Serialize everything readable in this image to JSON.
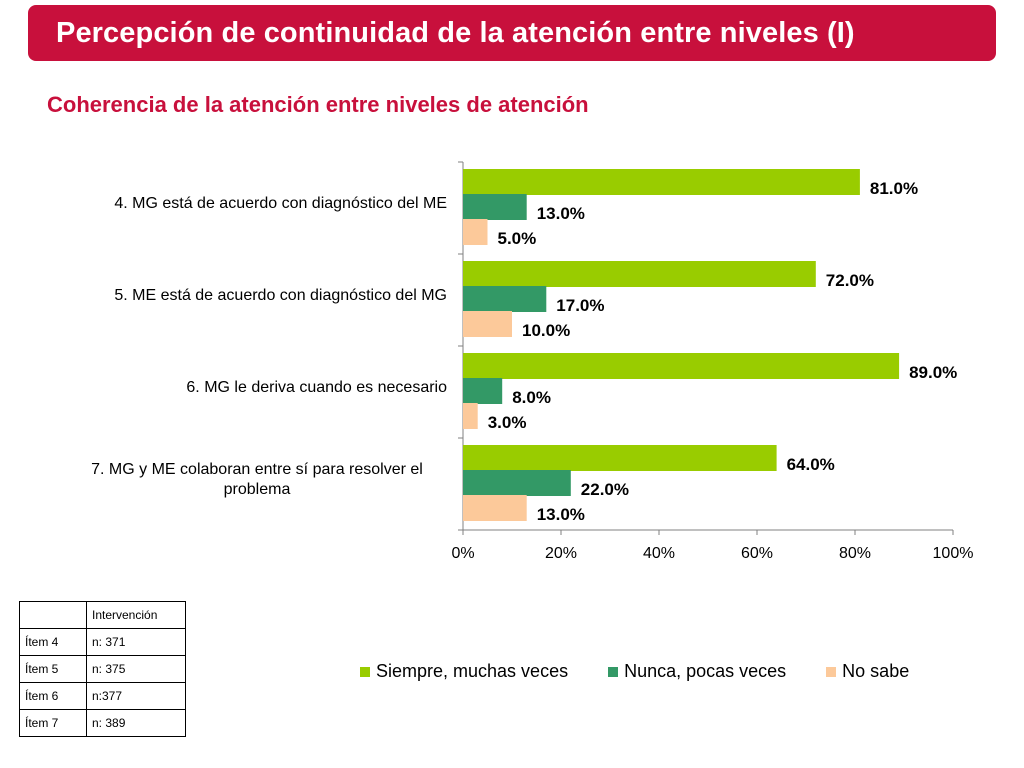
{
  "header": {
    "title": "Percepción de continuidad de la atención entre niveles  (I)",
    "subtitle": "Coherencia de la atención entre niveles de atención",
    "bar_color": "#c8103c",
    "subtitle_color": "#c8103c"
  },
  "chart_data": {
    "type": "bar",
    "orientation": "horizontal",
    "categories": [
      "4. MG está de acuerdo con diagnóstico del ME",
      "5. ME está de acuerdo con diagnóstico del MG",
      "6. MG le deriva cuando es necesario",
      "7. MG y ME colaboran entre sí para resolver el problema"
    ],
    "series": [
      {
        "name": "Siempre, muchas veces",
        "color": "#99cc00",
        "values": [
          81.0,
          72.0,
          89.0,
          64.0
        ],
        "labels": [
          "81.0%",
          "72.0%",
          "89.0%",
          "64.0%"
        ]
      },
      {
        "name": "Nunca, pocas veces",
        "color": "#339966",
        "values": [
          13.0,
          17.0,
          8.0,
          22.0
        ],
        "labels": [
          "13.0%",
          "17.0%",
          "8.0%",
          "22.0%"
        ]
      },
      {
        "name": "No sabe",
        "color": "#fcc99a",
        "values": [
          5.0,
          10.0,
          3.0,
          13.0
        ],
        "labels": [
          "5.0%",
          "10.0%",
          "3.0%",
          "13.0%"
        ]
      }
    ],
    "xlim": [
      0,
      100
    ],
    "xticks": [
      0,
      20,
      40,
      60,
      80,
      100
    ],
    "xtick_labels": [
      "0%",
      "20%",
      "40%",
      "60%",
      "80%",
      "100%"
    ],
    "grid": false,
    "legend_position": "bottom"
  },
  "table": {
    "header": [
      "",
      "Intervención"
    ],
    "rows": [
      [
        "Ítem 4",
        "n: 371"
      ],
      [
        "Ítem 5",
        "n: 375"
      ],
      [
        "Ítem 6",
        "n:377"
      ],
      [
        "Ítem 7",
        "n: 389"
      ]
    ]
  }
}
